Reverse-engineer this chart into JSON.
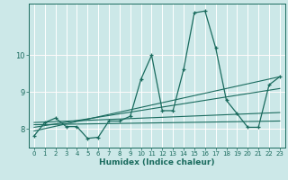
{
  "xlabel": "Humidex (Indice chaleur)",
  "bg_color": "#cce8e8",
  "line_color": "#1a6b5e",
  "grid_color": "#ffffff",
  "red_line_color": "#cc4444",
  "xlim": [
    -0.5,
    23.5
  ],
  "ylim": [
    7.5,
    11.4
  ],
  "yticks": [
    8,
    9,
    10
  ],
  "xticks": [
    0,
    1,
    2,
    3,
    4,
    5,
    6,
    7,
    8,
    9,
    10,
    11,
    12,
    13,
    14,
    15,
    16,
    17,
    18,
    19,
    20,
    21,
    22,
    23
  ],
  "line1_x": [
    0,
    1,
    2,
    3,
    4,
    5,
    6,
    7,
    8,
    9,
    10,
    11,
    12,
    13,
    14,
    15,
    16,
    17,
    18,
    19,
    20,
    21,
    22,
    23
  ],
  "line1_y": [
    7.82,
    8.18,
    8.3,
    8.07,
    8.07,
    7.75,
    7.78,
    8.22,
    8.22,
    8.35,
    9.35,
    10.0,
    8.5,
    8.5,
    9.62,
    11.15,
    11.2,
    10.2,
    8.78,
    8.42,
    8.05,
    8.05,
    9.2,
    9.42
  ],
  "line2_x": [
    0,
    23
  ],
  "line2_y": [
    7.95,
    9.42
  ],
  "line3_x": [
    0,
    23
  ],
  "line3_y": [
    8.05,
    9.1
  ],
  "line4_x": [
    0,
    23
  ],
  "line4_y": [
    8.18,
    8.45
  ],
  "line5_x": [
    0,
    23
  ],
  "line5_y": [
    8.12,
    8.22
  ]
}
